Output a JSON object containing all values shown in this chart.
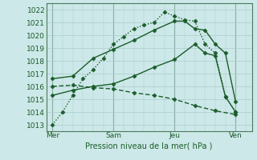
{
  "background_color": "#cde8e8",
  "grid_color": "#aacccc",
  "line_color": "#1a5c2a",
  "title": "Pression niveau de la mer( hPa )",
  "ylim": [
    1012.5,
    1022.5
  ],
  "yticks": [
    1013,
    1014,
    1015,
    1016,
    1017,
    1018,
    1019,
    1020,
    1021,
    1022
  ],
  "xtick_labels": [
    "Mer",
    "Sam",
    "Jeu",
    "Ven"
  ],
  "xtick_positions": [
    0,
    3,
    6,
    9
  ],
  "xlim": [
    -0.3,
    9.8
  ],
  "lines": [
    {
      "x": [
        0,
        0.5,
        1,
        1.5,
        2,
        2.5,
        3,
        3.5,
        4,
        4.5,
        5,
        5.5,
        6,
        6.5,
        7,
        7.5,
        8,
        8.5,
        9
      ],
      "y": [
        1013.0,
        1014.0,
        1015.3,
        1016.6,
        1017.3,
        1018.2,
        1019.3,
        1019.9,
        1020.5,
        1020.8,
        1021.0,
        1021.8,
        1021.5,
        1021.2,
        1021.1,
        1019.3,
        1018.6,
        1015.2,
        1014.0
      ],
      "style": "dotted",
      "marker": "D",
      "markersize": 2.5,
      "linewidth": 1.0
    },
    {
      "x": [
        0,
        1,
        2,
        3,
        4,
        5,
        6,
        6.5,
        7,
        7.5,
        8,
        8.5,
        9
      ],
      "y": [
        1016.6,
        1016.8,
        1018.2,
        1018.9,
        1019.6,
        1020.4,
        1021.1,
        1021.1,
        1020.5,
        1020.4,
        1019.3,
        1018.6,
        1014.8
      ],
      "style": "solid",
      "marker": "D",
      "markersize": 2.5,
      "linewidth": 1.0
    },
    {
      "x": [
        0,
        1,
        2,
        3,
        4,
        5,
        6,
        7,
        7.5,
        8,
        8.5,
        9
      ],
      "y": [
        1015.3,
        1015.7,
        1016.0,
        1016.2,
        1016.8,
        1017.5,
        1018.1,
        1019.3,
        1018.6,
        1018.4,
        1015.2,
        1014.0
      ],
      "style": "solid",
      "marker": "D",
      "markersize": 2.5,
      "linewidth": 1.0
    },
    {
      "x": [
        0,
        1,
        2,
        3,
        4,
        5,
        6,
        7,
        8,
        9
      ],
      "y": [
        1016.0,
        1016.1,
        1015.9,
        1015.8,
        1015.5,
        1015.3,
        1015.0,
        1014.5,
        1014.1,
        1013.8
      ],
      "style": "dashed",
      "marker": "D",
      "markersize": 2.5,
      "linewidth": 1.0
    }
  ]
}
